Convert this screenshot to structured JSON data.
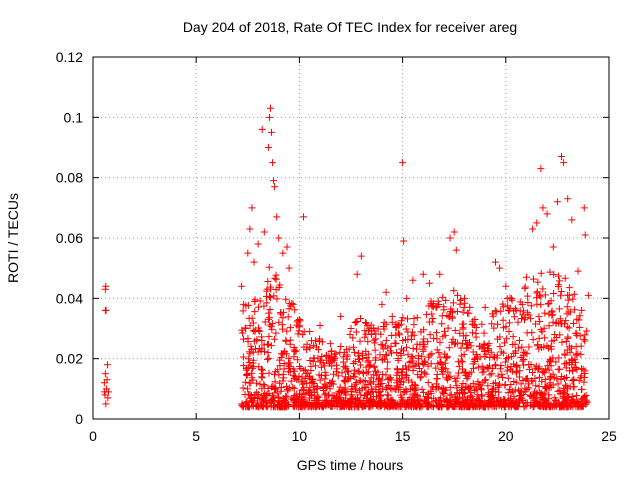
{
  "chart_data": {
    "type": "scatter",
    "title": "Day 204 of 2018, Rate Of TEC Index for receiver areg",
    "xlabel": "GPS time / hours",
    "ylabel": "ROTI / TECUs",
    "xlim": [
      0,
      25
    ],
    "ylim": [
      0,
      0.12
    ],
    "x_ticks": [
      "0",
      "5",
      "10",
      "15",
      "20",
      "25"
    ],
    "y_ticks": [
      "0",
      "0.02",
      "0.04",
      "0.06",
      "0.08",
      "0.1",
      "0.12"
    ],
    "grid": true,
    "marker": "+",
    "color": "#ff0000",
    "series": [
      {
        "points": [
          [
            0.6,
            0.043
          ],
          [
            0.62,
            0.044
          ],
          [
            0.6,
            0.036
          ],
          [
            0.63,
            0.036
          ],
          [
            0.55,
            0.012
          ],
          [
            0.58,
            0.008
          ],
          [
            0.6,
            0.015
          ],
          [
            0.65,
            0.01
          ],
          [
            0.7,
            0.018
          ],
          [
            0.72,
            0.007
          ],
          [
            0.68,
            0.013
          ],
          [
            0.62,
            0.005
          ],
          [
            0.75,
            0.009
          ],
          [
            0.55,
            0.009
          ],
          [
            7.2,
            0.044
          ],
          [
            7.3,
            0.038
          ],
          [
            7.4,
            0.03
          ],
          [
            7.5,
            0.055
          ],
          [
            7.6,
            0.063
          ],
          [
            7.7,
            0.07
          ],
          [
            7.8,
            0.052
          ],
          [
            8.0,
            0.058
          ],
          [
            8.2,
            0.096
          ],
          [
            8.3,
            0.062
          ],
          [
            8.5,
            0.09
          ],
          [
            8.55,
            0.1
          ],
          [
            8.6,
            0.103
          ],
          [
            8.65,
            0.095
          ],
          [
            8.7,
            0.085
          ],
          [
            8.75,
            0.079
          ],
          [
            8.8,
            0.077
          ],
          [
            8.9,
            0.067
          ],
          [
            9.0,
            0.06
          ],
          [
            9.2,
            0.055
          ],
          [
            9.4,
            0.057
          ],
          [
            9.5,
            0.05
          ],
          [
            9.7,
            0.038
          ],
          [
            10.0,
            0.033
          ],
          [
            10.2,
            0.067
          ],
          [
            10.5,
            0.029
          ],
          [
            11.0,
            0.031
          ],
          [
            11.5,
            0.025
          ],
          [
            12.0,
            0.034
          ],
          [
            12.5,
            0.03
          ],
          [
            12.8,
            0.048
          ],
          [
            13.0,
            0.054
          ],
          [
            13.2,
            0.032
          ],
          [
            13.5,
            0.028
          ],
          [
            14.0,
            0.038
          ],
          [
            14.2,
            0.042
          ],
          [
            14.5,
            0.034
          ],
          [
            15.0,
            0.085
          ],
          [
            15.05,
            0.059
          ],
          [
            15.2,
            0.04
          ],
          [
            15.5,
            0.046
          ],
          [
            16.0,
            0.048
          ],
          [
            16.3,
            0.045
          ],
          [
            16.8,
            0.048
          ],
          [
            17.3,
            0.06
          ],
          [
            17.5,
            0.062
          ],
          [
            17.6,
            0.056
          ],
          [
            18.0,
            0.04
          ],
          [
            18.5,
            0.033
          ],
          [
            19.0,
            0.037
          ],
          [
            19.5,
            0.052
          ],
          [
            19.7,
            0.05
          ],
          [
            20.0,
            0.044
          ],
          [
            20.5,
            0.036
          ],
          [
            21.0,
            0.047
          ],
          [
            21.3,
            0.063
          ],
          [
            21.5,
            0.065
          ],
          [
            21.7,
            0.083
          ],
          [
            21.8,
            0.07
          ],
          [
            22.0,
            0.068
          ],
          [
            22.3,
            0.057
          ],
          [
            22.5,
            0.072
          ],
          [
            22.7,
            0.087
          ],
          [
            22.8,
            0.085
          ],
          [
            23.0,
            0.073
          ],
          [
            23.2,
            0.066
          ],
          [
            23.5,
            0.049
          ],
          [
            23.8,
            0.07
          ],
          [
            23.85,
            0.061
          ],
          [
            24.0,
            0.041
          ]
        ]
      }
    ]
  }
}
